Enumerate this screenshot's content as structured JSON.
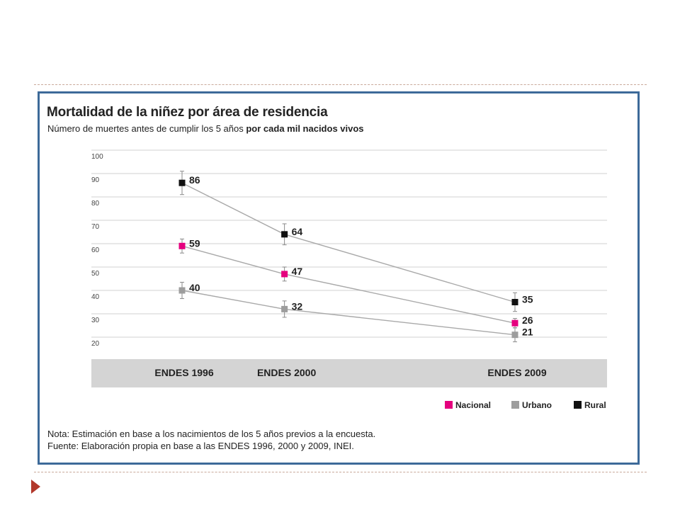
{
  "chart_data": {
    "type": "line",
    "title": "Mortalidad de la niñez por área de residencia",
    "subtitle_normal": "Número de muertes antes de cumplir los 5 años ",
    "subtitle_bold": "por cada mil nacidos vivos",
    "categories": [
      "ENDES 1996",
      "ENDES 2000",
      "ENDES 2009"
    ],
    "x_positions": [
      1996,
      2000,
      2009
    ],
    "yticks": [
      20,
      30,
      40,
      50,
      60,
      70,
      80,
      90,
      100
    ],
    "ylim": [
      20,
      100
    ],
    "grid": true,
    "legend_position": "bottom-right",
    "series": [
      {
        "name": "Nacional",
        "color": "#e5007e",
        "values": [
          59,
          47,
          26
        ],
        "labels": [
          "59",
          "47",
          "26"
        ],
        "error": [
          3,
          3,
          2
        ]
      },
      {
        "name": "Urbano",
        "color": "#9d9d9d",
        "values": [
          40,
          32,
          21
        ],
        "labels": [
          "40",
          "32",
          "21"
        ],
        "error": [
          3.5,
          3.5,
          3
        ]
      },
      {
        "name": "Rural",
        "color": "#111111",
        "values": [
          86,
          64,
          35
        ],
        "labels": [
          "86",
          "64",
          "35"
        ],
        "error": [
          5,
          4.5,
          4
        ]
      }
    ],
    "line_color": "#a9a9a9",
    "notes": [
      "Nota: Estimación en base a los nacimientos de los 5 años previos a la encuesta.",
      "Fuente: Elaboración propia en base a las ENDES 1996, 2000 y 2009, INEI."
    ]
  },
  "colors": {
    "frame": "#3d6a99",
    "category_band": "#d4d4d4",
    "grid": "#d9d9d9",
    "dash": "#c9a99a",
    "bullet": "#b2382b"
  }
}
